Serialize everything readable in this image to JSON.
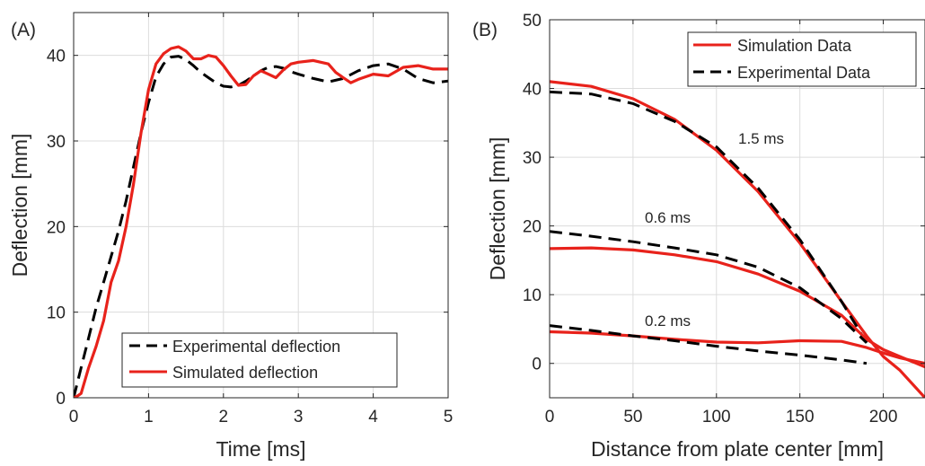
{
  "chart_data": [
    {
      "type": "line",
      "panel_label": "(A)",
      "xlabel": "Time [ms]",
      "ylabel": "Deflection [mm]",
      "xlim": [
        0,
        5
      ],
      "ylim": [
        0,
        45
      ],
      "xticks": [
        0,
        1,
        2,
        3,
        4,
        5
      ],
      "yticks": [
        0,
        10,
        20,
        30,
        40
      ],
      "grid": true,
      "legend_position": "bottom-right",
      "series": [
        {
          "name": "Experimental deflection",
          "style": "dashed",
          "color": "#000000",
          "x": [
            0,
            0.1,
            0.2,
            0.3,
            0.4,
            0.5,
            0.6,
            0.7,
            0.8,
            0.9,
            1.0,
            1.1,
            1.2,
            1.3,
            1.4,
            1.5,
            1.6,
            1.7,
            1.8,
            1.9,
            2.0,
            2.1,
            2.2,
            2.3,
            2.4,
            2.5,
            2.6,
            2.7,
            2.8,
            2.9,
            3.0,
            3.2,
            3.4,
            3.6,
            3.8,
            4.0,
            4.2,
            4.4,
            4.6,
            4.8,
            5.0
          ],
          "y": [
            0,
            3.5,
            7,
            10.5,
            13.5,
            16.5,
            19.5,
            23,
            27,
            31,
            34.5,
            37.5,
            39,
            39.8,
            39.9,
            39.5,
            38.8,
            38,
            37.4,
            36.8,
            36.4,
            36.3,
            36.5,
            37,
            37.6,
            38.2,
            38.6,
            38.7,
            38.5,
            38.1,
            37.8,
            37.3,
            36.9,
            37.3,
            38.2,
            38.8,
            39,
            38.4,
            37.3,
            36.8,
            37
          ]
        },
        {
          "name": "Simulated deflection",
          "style": "solid",
          "color": "#e8221b",
          "x": [
            0,
            0.05,
            0.1,
            0.15,
            0.2,
            0.3,
            0.4,
            0.5,
            0.6,
            0.7,
            0.8,
            0.9,
            1.0,
            1.1,
            1.2,
            1.3,
            1.4,
            1.5,
            1.6,
            1.7,
            1.8,
            1.9,
            2.0,
            2.1,
            2.2,
            2.3,
            2.4,
            2.5,
            2.6,
            2.7,
            2.8,
            2.9,
            3.0,
            3.2,
            3.4,
            3.5,
            3.6,
            3.7,
            3.8,
            4.0,
            4.2,
            4.4,
            4.6,
            4.8,
            5.0
          ],
          "y": [
            0,
            0.2,
            0.5,
            2,
            3.5,
            6,
            9,
            13.5,
            16,
            20,
            25,
            31,
            36,
            39,
            40.2,
            40.8,
            41,
            40.5,
            39.6,
            39.6,
            40,
            39.8,
            38.8,
            37.6,
            36.5,
            36.6,
            37.6,
            38.2,
            37.8,
            37.4,
            38.3,
            39,
            39.2,
            39.4,
            39,
            38,
            37.4,
            36.8,
            37.2,
            37.8,
            37.6,
            38.6,
            38.8,
            38.4,
            38.4
          ]
        }
      ]
    },
    {
      "type": "line",
      "panel_label": "(B)",
      "xlabel": "Distance from plate center [mm]",
      "ylabel": "Deflection [mm]",
      "xlim": [
        0,
        225
      ],
      "ylim": [
        -5,
        50
      ],
      "xticks": [
        0,
        50,
        100,
        150,
        200
      ],
      "yticks": [
        0,
        10,
        20,
        30,
        40,
        50
      ],
      "grid": true,
      "legend_position": "top-right",
      "legend": [
        "Simulation Data",
        "Experimental Data"
      ],
      "annotations": [
        "1.5 ms",
        "0.6 ms",
        "0.2 ms"
      ],
      "series": [
        {
          "name": "Simulation Data",
          "time": "1.5 ms",
          "style": "solid",
          "color": "#e8221b",
          "x": [
            0,
            25,
            50,
            75,
            100,
            125,
            150,
            175,
            190,
            200,
            210,
            225
          ],
          "y": [
            41,
            40.3,
            38.5,
            35.5,
            31,
            25,
            17.5,
            9,
            4,
            1,
            -1,
            -5
          ]
        },
        {
          "name": "Experimental Data",
          "time": "1.5 ms",
          "style": "dashed",
          "color": "#000000",
          "x": [
            0,
            25,
            50,
            75,
            100,
            125,
            150,
            175,
            190
          ],
          "y": [
            39.5,
            39.2,
            37.8,
            35.2,
            31.5,
            25.5,
            18,
            9,
            3
          ]
        },
        {
          "name": "Simulation Data",
          "time": "0.6 ms",
          "style": "solid",
          "color": "#e8221b",
          "x": [
            0,
            25,
            50,
            75,
            100,
            125,
            150,
            175,
            190,
            200,
            210,
            225
          ],
          "y": [
            16.7,
            16.8,
            16.5,
            15.8,
            14.8,
            13,
            10.5,
            7,
            3.5,
            2,
            1,
            -0.5
          ]
        },
        {
          "name": "Experimental Data",
          "time": "0.6 ms",
          "style": "dashed",
          "color": "#000000",
          "x": [
            0,
            25,
            50,
            75,
            100,
            125,
            150,
            175,
            190
          ],
          "y": [
            19.2,
            18.5,
            17.7,
            16.8,
            15.8,
            14,
            11,
            6.5,
            3
          ]
        },
        {
          "name": "Simulation Data",
          "time": "0.2 ms",
          "style": "solid",
          "color": "#e8221b",
          "x": [
            0,
            25,
            50,
            75,
            100,
            125,
            150,
            175,
            190,
            200,
            210,
            225
          ],
          "y": [
            4.6,
            4.4,
            4,
            3.5,
            3.1,
            3,
            3.3,
            3.2,
            2.3,
            1.5,
            0.8,
            0
          ]
        },
        {
          "name": "Experimental Data",
          "time": "0.2 ms",
          "style": "dashed",
          "color": "#000000",
          "x": [
            0,
            25,
            50,
            75,
            100,
            125,
            150,
            175,
            190
          ],
          "y": [
            5.5,
            4.8,
            4,
            3.3,
            2.5,
            1.8,
            1.2,
            0.5,
            0
          ]
        }
      ]
    }
  ]
}
